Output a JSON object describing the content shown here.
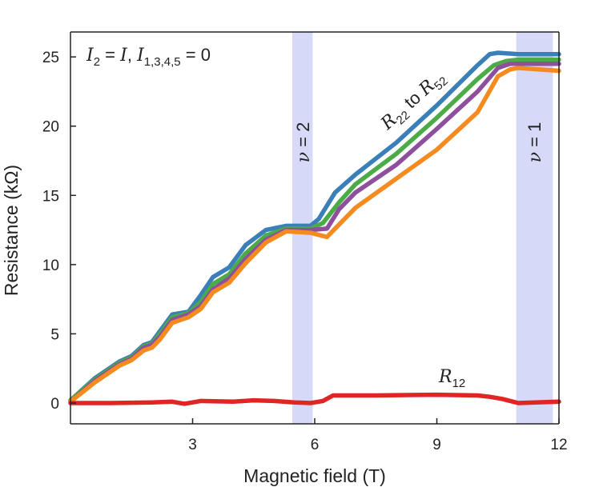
{
  "chart_data": {
    "type": "line",
    "xlabel": "Magnetic field (T)",
    "ylabel": "Resistance (kΩ)",
    "xlim": [
      0,
      12
    ],
    "ylim": [
      -1.5,
      26.8
    ],
    "x_ticks": [
      3,
      6,
      9,
      12
    ],
    "y_ticks": [
      0,
      5,
      10,
      15,
      20,
      25
    ],
    "grid": false,
    "bands": [
      {
        "label_main": "ν",
        "label_rest": " = 2",
        "x_range": [
          5.45,
          5.95
        ],
        "color": "#d6d9f7"
      },
      {
        "label_main": "ν",
        "label_rest": " = 1",
        "x_range": [
          10.95,
          11.85
        ],
        "color": "#d6d9f7"
      }
    ],
    "condition_label": {
      "parts": [
        {
          "t": "I",
          "style": "i"
        },
        {
          "t": "2",
          "style": "sub"
        },
        {
          "t": " = ",
          "style": "n"
        },
        {
          "t": "I",
          "style": "i"
        },
        {
          "t": ", ",
          "style": "n"
        },
        {
          "t": "I",
          "style": "i"
        },
        {
          "t": "1,3,4,5",
          "style": "sub"
        },
        {
          "t": " = 0",
          "style": "n"
        }
      ]
    },
    "group_label": {
      "parts": [
        {
          "t": "R",
          "style": "i"
        },
        {
          "t": "22",
          "style": "sub"
        },
        {
          "t": " to ",
          "style": "n"
        },
        {
          "t": "R",
          "style": "i"
        },
        {
          "t": "52",
          "style": "sub"
        }
      ]
    },
    "r12_label": {
      "parts": [
        {
          "t": "R",
          "style": "i"
        },
        {
          "t": "12",
          "style": "sub"
        }
      ]
    },
    "series": [
      {
        "color": "#3a7fb8",
        "x": [
          0,
          0.6,
          1.2,
          1.5,
          1.8,
          2.0,
          2.2,
          2.5,
          2.9,
          3.2,
          3.5,
          3.9,
          4.3,
          4.8,
          5.3,
          5.9,
          6.1,
          6.5,
          7.0,
          8.0,
          9.0,
          10.0,
          10.3,
          10.5,
          11.0,
          12.0
        ],
        "y": [
          0.2,
          1.8,
          3.0,
          3.4,
          4.2,
          4.4,
          5.2,
          6.4,
          6.6,
          7.8,
          9.1,
          9.8,
          11.4,
          12.5,
          12.8,
          12.8,
          13.3,
          15.2,
          16.5,
          18.8,
          21.5,
          24.4,
          25.2,
          25.3,
          25.2,
          25.2
        ]
      },
      {
        "color": "#4bab46",
        "x": [
          0,
          0.6,
          1.2,
          1.5,
          1.8,
          2.0,
          2.2,
          2.5,
          2.9,
          3.2,
          3.5,
          3.9,
          4.3,
          4.8,
          5.3,
          5.9,
          6.2,
          6.6,
          7.0,
          8.0,
          9.0,
          10.0,
          10.4,
          10.7,
          11.0,
          12.0
        ],
        "y": [
          0.2,
          1.7,
          2.9,
          3.3,
          4.1,
          4.3,
          5.0,
          6.2,
          6.5,
          7.3,
          8.6,
          9.3,
          10.8,
          12.1,
          12.6,
          12.6,
          13.0,
          14.5,
          15.8,
          18.0,
          20.6,
          23.4,
          24.4,
          24.7,
          24.8,
          24.8
        ]
      },
      {
        "color": "#8e4f9c",
        "x": [
          0,
          0.6,
          1.2,
          1.5,
          1.8,
          2.0,
          2.2,
          2.5,
          2.9,
          3.2,
          3.5,
          3.9,
          4.3,
          4.8,
          5.3,
          5.9,
          6.3,
          6.6,
          7.0,
          8.0,
          9.0,
          10.0,
          10.5,
          10.8,
          11.0,
          12.0
        ],
        "y": [
          0.1,
          1.6,
          2.8,
          3.2,
          4.0,
          4.2,
          4.8,
          6.0,
          6.4,
          7.0,
          8.2,
          9.0,
          10.4,
          11.8,
          12.5,
          12.5,
          12.6,
          14.0,
          15.2,
          17.2,
          19.8,
          22.5,
          24.2,
          24.5,
          24.5,
          24.5
        ]
      },
      {
        "color": "#f58a1f",
        "x": [
          0,
          0.6,
          1.2,
          1.5,
          1.8,
          2.0,
          2.2,
          2.5,
          2.9,
          3.2,
          3.5,
          3.9,
          4.3,
          4.8,
          5.3,
          5.9,
          6.3,
          6.6,
          7.0,
          8.0,
          9.0,
          10.0,
          10.5,
          10.8,
          11.0,
          12.0
        ],
        "y": [
          0.1,
          1.5,
          2.7,
          3.1,
          3.8,
          4.0,
          4.6,
          5.8,
          6.2,
          6.8,
          8.0,
          8.7,
          10.1,
          11.6,
          12.4,
          12.3,
          12.0,
          12.9,
          14.1,
          16.2,
          18.3,
          21.0,
          23.6,
          24.1,
          24.2,
          24.0
        ]
      },
      {
        "color": "#e02525",
        "x": [
          0,
          1.0,
          2.0,
          2.5,
          2.8,
          3.2,
          4.0,
          4.5,
          5.0,
          5.5,
          5.9,
          6.2,
          6.45,
          7.5,
          9.0,
          10.0,
          10.3,
          10.6,
          11.0,
          12.0
        ],
        "y": [
          0.0,
          0.0,
          0.05,
          0.1,
          -0.05,
          0.15,
          0.1,
          0.2,
          0.15,
          0.05,
          0.0,
          0.15,
          0.55,
          0.55,
          0.6,
          0.55,
          0.45,
          0.3,
          0.0,
          0.1
        ]
      }
    ]
  }
}
